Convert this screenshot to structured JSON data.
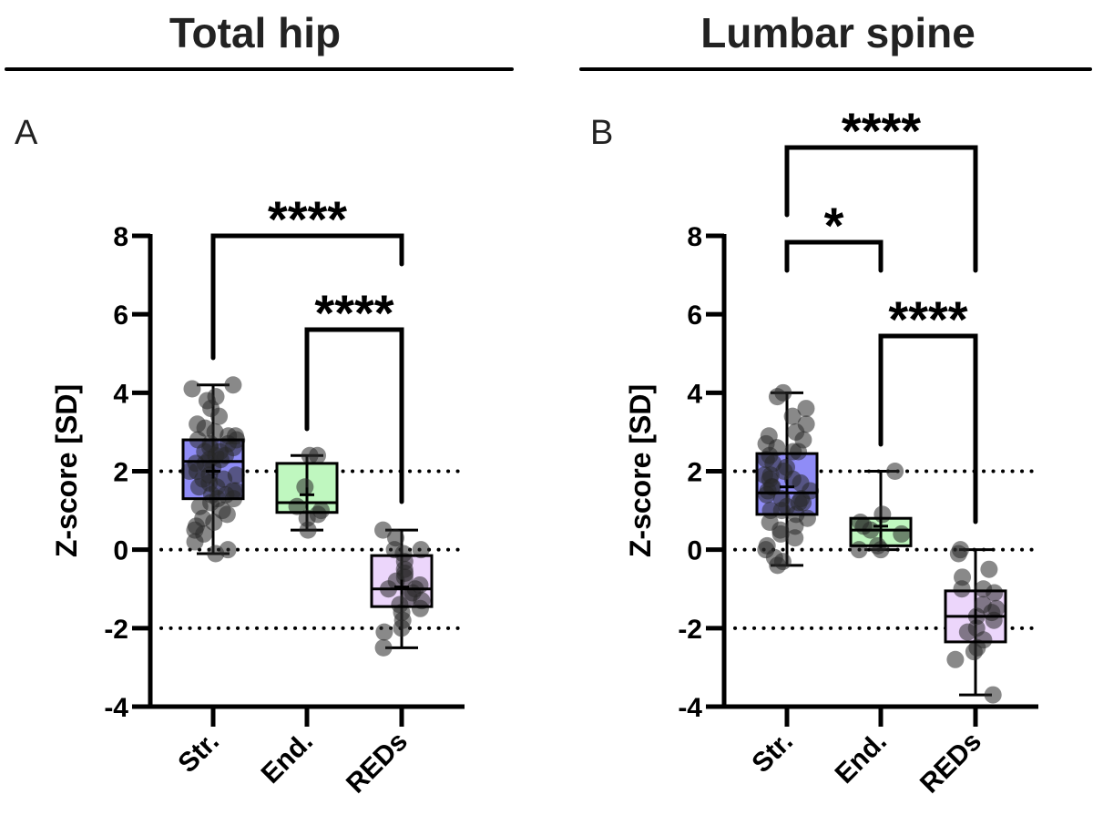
{
  "chart_data": [
    {
      "type": "box",
      "panel_letter": "A",
      "title": "Total hip",
      "xlabel": "",
      "ylabel": "Z-score [SD]",
      "ylim": [
        -4,
        8
      ],
      "yticks": [
        "8",
        "6",
        "4",
        "2",
        "0",
        "-2",
        "-4"
      ],
      "ytick_values": [
        8,
        6,
        4,
        2,
        0,
        -2,
        -4
      ],
      "reference_lines": [
        2,
        0,
        -2
      ],
      "categories": [
        "Str.",
        "End.",
        "REDs"
      ],
      "colors": [
        "#8f8cf7",
        "#bff7bf",
        "#ecd6fb"
      ],
      "boxes": [
        {
          "name": "Str.",
          "min": -0.1,
          "q1": 1.3,
          "median": 2.25,
          "q3": 2.8,
          "max": 4.2,
          "mean": 2.0,
          "points": [
            4.2,
            4.1,
            3.9,
            3.8,
            3.6,
            3.4,
            3.2,
            3.1,
            3.0,
            2.9,
            2.9,
            2.8,
            2.8,
            2.7,
            2.7,
            2.6,
            2.6,
            2.5,
            2.5,
            2.4,
            2.4,
            2.3,
            2.3,
            2.2,
            2.2,
            2.1,
            2.0,
            2.0,
            1.9,
            1.9,
            1.8,
            1.8,
            1.7,
            1.6,
            1.6,
            1.5,
            1.5,
            1.4,
            1.4,
            1.3,
            1.3,
            1.2,
            1.1,
            1.0,
            0.9,
            0.8,
            0.7,
            0.6,
            0.5,
            0.4,
            0.2,
            0.0,
            -0.1
          ]
        },
        {
          "name": "End.",
          "min": 0.5,
          "q1": 0.95,
          "median": 1.2,
          "q3": 2.2,
          "max": 2.4,
          "mean": 1.4,
          "points": [
            2.4,
            2.4,
            1.6,
            1.1,
            1.0,
            0.9,
            0.8,
            0.5
          ]
        },
        {
          "name": "REDs",
          "min": -2.5,
          "q1": -1.45,
          "median": -1.0,
          "q3": -0.15,
          "max": 0.5,
          "mean": -0.95,
          "points": [
            0.5,
            0.3,
            0.0,
            0.0,
            -0.1,
            -0.3,
            -0.5,
            -0.6,
            -0.7,
            -0.8,
            -0.9,
            -1.0,
            -1.0,
            -1.1,
            -1.2,
            -1.3,
            -1.4,
            -1.5,
            -1.6,
            -1.8,
            -2.0,
            -2.1,
            -2.5
          ]
        }
      ],
      "comparisons": [
        {
          "from": "Str.",
          "to": "REDs",
          "label": "****"
        },
        {
          "from": "End.",
          "to": "REDs",
          "label": "****"
        }
      ]
    },
    {
      "type": "box",
      "panel_letter": "B",
      "title": "Lumbar spine",
      "xlabel": "",
      "ylabel": "Z-score [SD]",
      "ylim": [
        -4,
        8
      ],
      "yticks": [
        "8",
        "6",
        "4",
        "2",
        "0",
        "-2",
        "-4"
      ],
      "ytick_values": [
        8,
        6,
        4,
        2,
        0,
        -2,
        -4
      ],
      "reference_lines": [
        2,
        0,
        -2
      ],
      "categories": [
        "Str.",
        "End.",
        "REDs"
      ],
      "colors": [
        "#8f8cf7",
        "#bff7bf",
        "#ecd6fb"
      ],
      "boxes": [
        {
          "name": "Str.",
          "min": -0.4,
          "q1": 0.9,
          "median": 1.45,
          "q3": 2.45,
          "max": 4.0,
          "mean": 1.6,
          "points": [
            4.0,
            3.9,
            3.6,
            3.4,
            3.2,
            3.0,
            2.9,
            2.8,
            2.7,
            2.6,
            2.5,
            2.5,
            2.4,
            2.3,
            2.2,
            2.1,
            2.0,
            1.9,
            1.9,
            1.8,
            1.8,
            1.7,
            1.6,
            1.6,
            1.5,
            1.5,
            1.4,
            1.3,
            1.3,
            1.2,
            1.2,
            1.1,
            1.0,
            1.0,
            0.9,
            0.8,
            0.7,
            0.6,
            0.5,
            0.4,
            0.3,
            0.1,
            0.0,
            -0.2,
            -0.3,
            -0.4
          ]
        },
        {
          "name": "End.",
          "min": 0.0,
          "q1": 0.1,
          "median": 0.5,
          "q3": 0.8,
          "max": 2.0,
          "mean": 0.6,
          "points": [
            2.0,
            0.9,
            0.7,
            0.6,
            0.5,
            0.4,
            0.1,
            0.0,
            0.0
          ]
        },
        {
          "name": "REDs",
          "min": -3.7,
          "q1": -2.35,
          "median": -1.7,
          "q3": -1.05,
          "max": 0.0,
          "mean": -1.7,
          "points": [
            0.0,
            -0.1,
            -0.5,
            -0.7,
            -1.0,
            -1.0,
            -1.1,
            -1.4,
            -1.5,
            -1.6,
            -1.7,
            -1.8,
            -2.0,
            -2.1,
            -2.3,
            -2.5,
            -2.6,
            -2.8,
            -3.7
          ]
        }
      ],
      "comparisons": [
        {
          "from": "Str.",
          "to": "REDs",
          "label": "****"
        },
        {
          "from": "Str.",
          "to": "End.",
          "label": "*"
        },
        {
          "from": "End.",
          "to": "REDs",
          "label": "****"
        }
      ]
    }
  ]
}
